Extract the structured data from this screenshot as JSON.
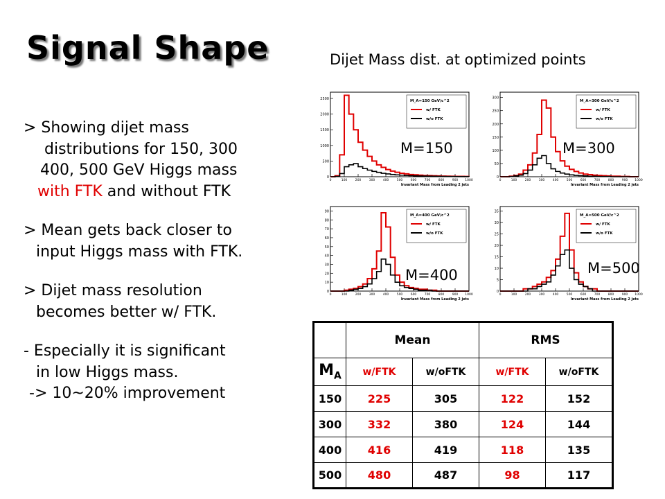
{
  "title": "Signal Shape",
  "subtitle": "Dijet Mass dist. at optimized points",
  "bullets": {
    "b1_l1": "> Showing dijet mass",
    "b1_l2": "distributions for 150, 300",
    "b1_l3": "400, 500 GeV Higgs mass",
    "b1_l4_red": "with FTK",
    "b1_l4_rest": " and without FTK",
    "b2_l1": "> Mean gets back closer to",
    "b2_l2": "input Higgs mass with FTK.",
    "b3_l1": "> Dijet mass resolution",
    "b3_l2": "becomes better w/ FTK.",
    "b4_l1": "- Especially it is significant",
    "b4_l2": "in low Higgs mass.",
    "b4_l3": "-> 10~20% improvement"
  },
  "colors": {
    "with_ftk": "#e00000",
    "without_ftk": "#000000"
  },
  "chart_data": [
    {
      "type": "line",
      "label": "M=150",
      "legend": [
        "M_A=150 GeV/c^2",
        "w/ FTK",
        "w/o FTK"
      ],
      "xlabel": "Invariant Mass from Leading 2 jets",
      "yticks": [
        "2500",
        "2000",
        "1500",
        "1000",
        "500",
        "0"
      ],
      "ylim": [
        0,
        2700
      ],
      "xlim": [
        0,
        1000
      ],
      "xticks": [
        "0",
        "100",
        "200",
        "300",
        "400",
        "500",
        "600",
        "700",
        "800",
        "900",
        "1000"
      ],
      "series": [
        {
          "name": "w/ FTK",
          "values": [
            0,
            30,
            700,
            2600,
            2000,
            1500,
            1100,
            850,
            650,
            500,
            380,
            300,
            230,
            180,
            140,
            110,
            90,
            70,
            60,
            50,
            40,
            35,
            30,
            25,
            20,
            18,
            15,
            12,
            10,
            8
          ]
        },
        {
          "name": "w/o FTK",
          "values": [
            0,
            10,
            100,
            320,
            380,
            420,
            320,
            260,
            210,
            170,
            140,
            110,
            90,
            70,
            60,
            50,
            40,
            35,
            30,
            25,
            20,
            18,
            15,
            12,
            10,
            8,
            6,
            5,
            4,
            3
          ]
        }
      ]
    },
    {
      "type": "line",
      "label": "M=300",
      "legend": [
        "M_A=300 GeV/c^2",
        "w/ FTK",
        "w/o FTK"
      ],
      "xlabel": "Invariant Mass from Leading 2 jets",
      "yticks": [
        "300",
        "250",
        "200",
        "150",
        "100",
        "50",
        "0"
      ],
      "ylim": [
        0,
        320
      ],
      "xlim": [
        0,
        1000
      ],
      "xticks": [
        "0",
        "100",
        "200",
        "300",
        "400",
        "500",
        "600",
        "700",
        "800",
        "900",
        "1000"
      ],
      "series": [
        {
          "name": "w/ FTK",
          "values": [
            0,
            0,
            2,
            5,
            10,
            25,
            45,
            90,
            160,
            290,
            260,
            150,
            95,
            60,
            40,
            28,
            20,
            14,
            10,
            8,
            6,
            5,
            4,
            3,
            2,
            2,
            1,
            1,
            0,
            0
          ]
        },
        {
          "name": "w/o FTK",
          "values": [
            0,
            0,
            1,
            3,
            6,
            12,
            25,
            45,
            70,
            80,
            50,
            30,
            20,
            14,
            10,
            7,
            5,
            4,
            3,
            2,
            2,
            1,
            1,
            1,
            0,
            0,
            0,
            0,
            0,
            0
          ]
        }
      ]
    },
    {
      "type": "line",
      "label": "M=400",
      "legend": [
        "M_A=400 GeV/c^2",
        "w/ FTK",
        "w/o FTK"
      ],
      "xlabel": "Invariant Mass from Leading 2 jets",
      "yticks": [
        "90",
        "80",
        "70",
        "60",
        "50",
        "40",
        "30",
        "20",
        "10",
        "0"
      ],
      "ylim": [
        0,
        95
      ],
      "xlim": [
        0,
        1000
      ],
      "xticks": [
        "0",
        "100",
        "200",
        "300",
        "400",
        "500",
        "600",
        "700",
        "800",
        "900",
        "1000"
      ],
      "series": [
        {
          "name": "w/ FTK",
          "values": [
            0,
            0,
            0,
            1,
            2,
            3,
            5,
            8,
            14,
            25,
            45,
            88,
            72,
            38,
            18,
            10,
            6,
            4,
            3,
            2,
            2,
            1,
            1,
            0,
            0,
            0,
            0,
            0,
            0,
            0
          ]
        },
        {
          "name": "w/o FTK",
          "values": [
            0,
            0,
            0,
            0,
            1,
            2,
            3,
            5,
            8,
            14,
            22,
            36,
            30,
            18,
            10,
            6,
            4,
            3,
            2,
            1,
            1,
            1,
            0,
            0,
            0,
            0,
            0,
            0,
            0,
            0
          ]
        }
      ]
    },
    {
      "type": "line",
      "label": "M=500",
      "legend": [
        "M_A=500 GeV/c^2",
        "w/ FTK",
        "w/o FTK"
      ],
      "xlabel": "Invariant Mass from Leading 2 jets",
      "yticks": [
        "35",
        "30",
        "25",
        "20",
        "15",
        "10",
        "5",
        "0"
      ],
      "ylim": [
        0,
        37
      ],
      "xlim": [
        0,
        1000
      ],
      "xticks": [
        "0",
        "100",
        "200",
        "300",
        "400",
        "500",
        "600",
        "700",
        "800",
        "900",
        "1000"
      ],
      "series": [
        {
          "name": "w/ FTK",
          "values": [
            0,
            0,
            0,
            0,
            0,
            1,
            1,
            2,
            3,
            4,
            6,
            9,
            14,
            24,
            34,
            18,
            8,
            4,
            2,
            1,
            1,
            0,
            0,
            0,
            0,
            0,
            0,
            0,
            0,
            0
          ]
        },
        {
          "name": "w/o FTK",
          "values": [
            0,
            0,
            0,
            0,
            0,
            0,
            1,
            1,
            2,
            3,
            4,
            7,
            11,
            16,
            18,
            10,
            5,
            3,
            2,
            1,
            0,
            0,
            0,
            0,
            0,
            0,
            0,
            0,
            0,
            0
          ]
        }
      ]
    },
    {
      "type": "table",
      "header_groups": [
        "Mean",
        "RMS"
      ],
      "row_header": "M",
      "row_header_sub": "A",
      "subheaders": [
        "w/FTK",
        "w/oFTK",
        "w/FTK",
        "w/oFTK"
      ],
      "rows": [
        {
          "m": "150",
          "v": [
            "225",
            "305",
            "122",
            "152"
          ]
        },
        {
          "m": "300",
          "v": [
            "332",
            "380",
            "124",
            "144"
          ]
        },
        {
          "m": "400",
          "v": [
            "416",
            "419",
            "118",
            "135"
          ]
        },
        {
          "m": "500",
          "v": [
            "480",
            "487",
            "98",
            "117"
          ]
        }
      ]
    }
  ]
}
